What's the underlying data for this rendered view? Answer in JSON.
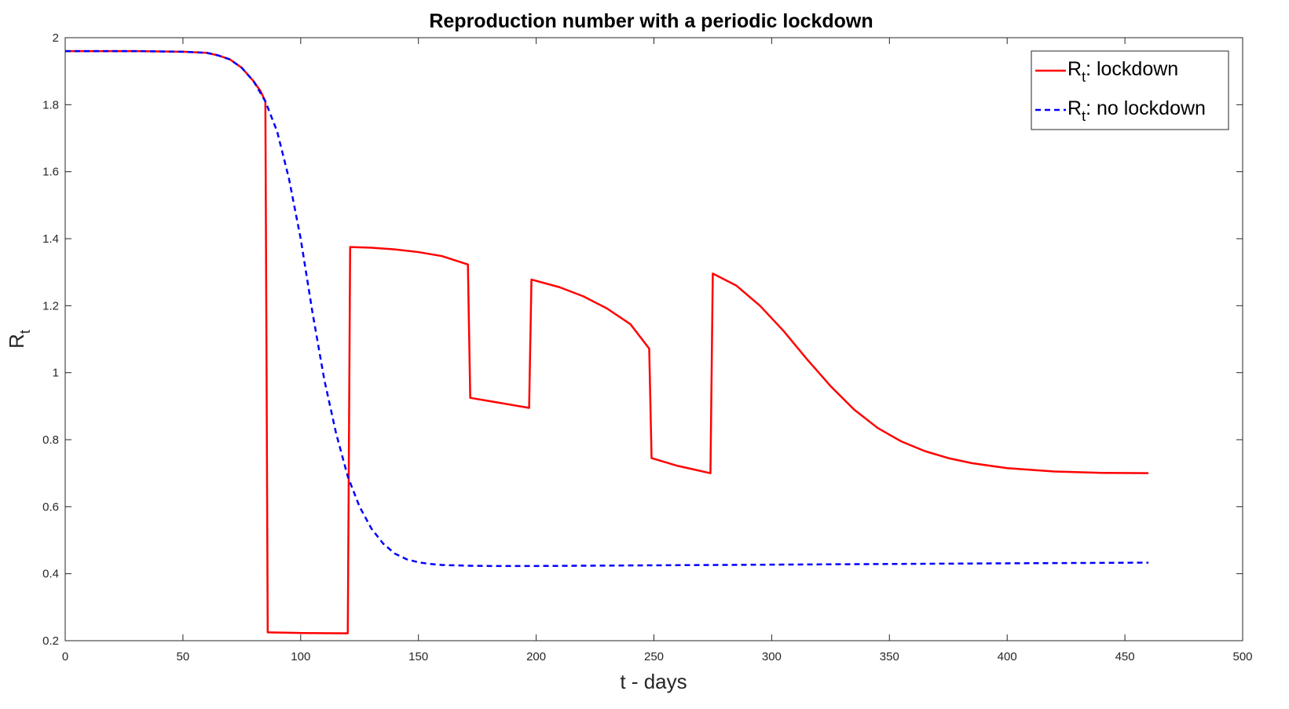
{
  "chart_data": {
    "type": "line",
    "title": "Reproduction number with a periodic lockdown",
    "xlabel": "t - days",
    "ylabel_main": "R",
    "ylabel_sub": "t",
    "xlim": [
      0,
      500
    ],
    "ylim": [
      0.2,
      2
    ],
    "x_ticks": [
      0,
      50,
      100,
      150,
      200,
      250,
      300,
      350,
      400,
      450,
      500
    ],
    "y_ticks": [
      0.2,
      0.4,
      0.6,
      0.8,
      1,
      1.2,
      1.4,
      1.6,
      1.8,
      2
    ],
    "x_tick_labels": [
      "0",
      "50",
      "100",
      "150",
      "200",
      "250",
      "300",
      "350",
      "400",
      "450",
      "500"
    ],
    "y_tick_labels": [
      "0.2",
      "0.4",
      "0.6",
      "0.8",
      "1",
      "1.2",
      "1.4",
      "1.6",
      "1.8",
      "2"
    ],
    "legend_position": "top-right",
    "grid": false,
    "series": [
      {
        "name": "lockdown",
        "legend_main": "R",
        "legend_sub": "t",
        "legend_rest": ": lockdown",
        "color": "#ff0000",
        "dash": "solid",
        "x": [
          0,
          30,
          50,
          60,
          65,
          70,
          75,
          80,
          83,
          85,
          86,
          100,
          120,
          121,
          130,
          140,
          150,
          160,
          171,
          172,
          197,
          198,
          210,
          220,
          230,
          240,
          248,
          249,
          260,
          274,
          275,
          285,
          295,
          305,
          315,
          325,
          335,
          345,
          355,
          365,
          375,
          385,
          400,
          420,
          440,
          460
        ],
        "y": [
          1.96,
          1.96,
          1.958,
          1.955,
          1.947,
          1.935,
          1.91,
          1.87,
          1.84,
          1.81,
          0.225,
          0.223,
          0.222,
          1.375,
          1.373,
          1.368,
          1.36,
          1.348,
          1.323,
          0.925,
          0.895,
          1.278,
          1.255,
          1.228,
          1.192,
          1.145,
          1.072,
          0.745,
          0.722,
          0.7,
          1.296,
          1.26,
          1.2,
          1.125,
          1.04,
          0.96,
          0.89,
          0.835,
          0.795,
          0.766,
          0.745,
          0.73,
          0.715,
          0.705,
          0.701,
          0.7
        ]
      },
      {
        "name": "no lockdown",
        "legend_main": "R",
        "legend_sub": "t",
        "legend_rest": ": no lockdown",
        "color": "#0000ff",
        "dash": "dashed",
        "x": [
          0,
          30,
          50,
          60,
          65,
          70,
          75,
          80,
          85,
          90,
          95,
          100,
          105,
          110,
          115,
          120,
          125,
          130,
          135,
          140,
          145,
          150,
          155,
          160,
          170,
          180,
          200,
          250,
          300,
          350,
          400,
          460
        ],
        "y": [
          1.96,
          1.96,
          1.958,
          1.955,
          1.947,
          1.935,
          1.91,
          1.87,
          1.81,
          1.72,
          1.58,
          1.4,
          1.18,
          0.98,
          0.82,
          0.69,
          0.6,
          0.535,
          0.49,
          0.46,
          0.443,
          0.434,
          0.429,
          0.426,
          0.424,
          0.423,
          0.423,
          0.425,
          0.427,
          0.429,
          0.431,
          0.433
        ]
      }
    ]
  }
}
